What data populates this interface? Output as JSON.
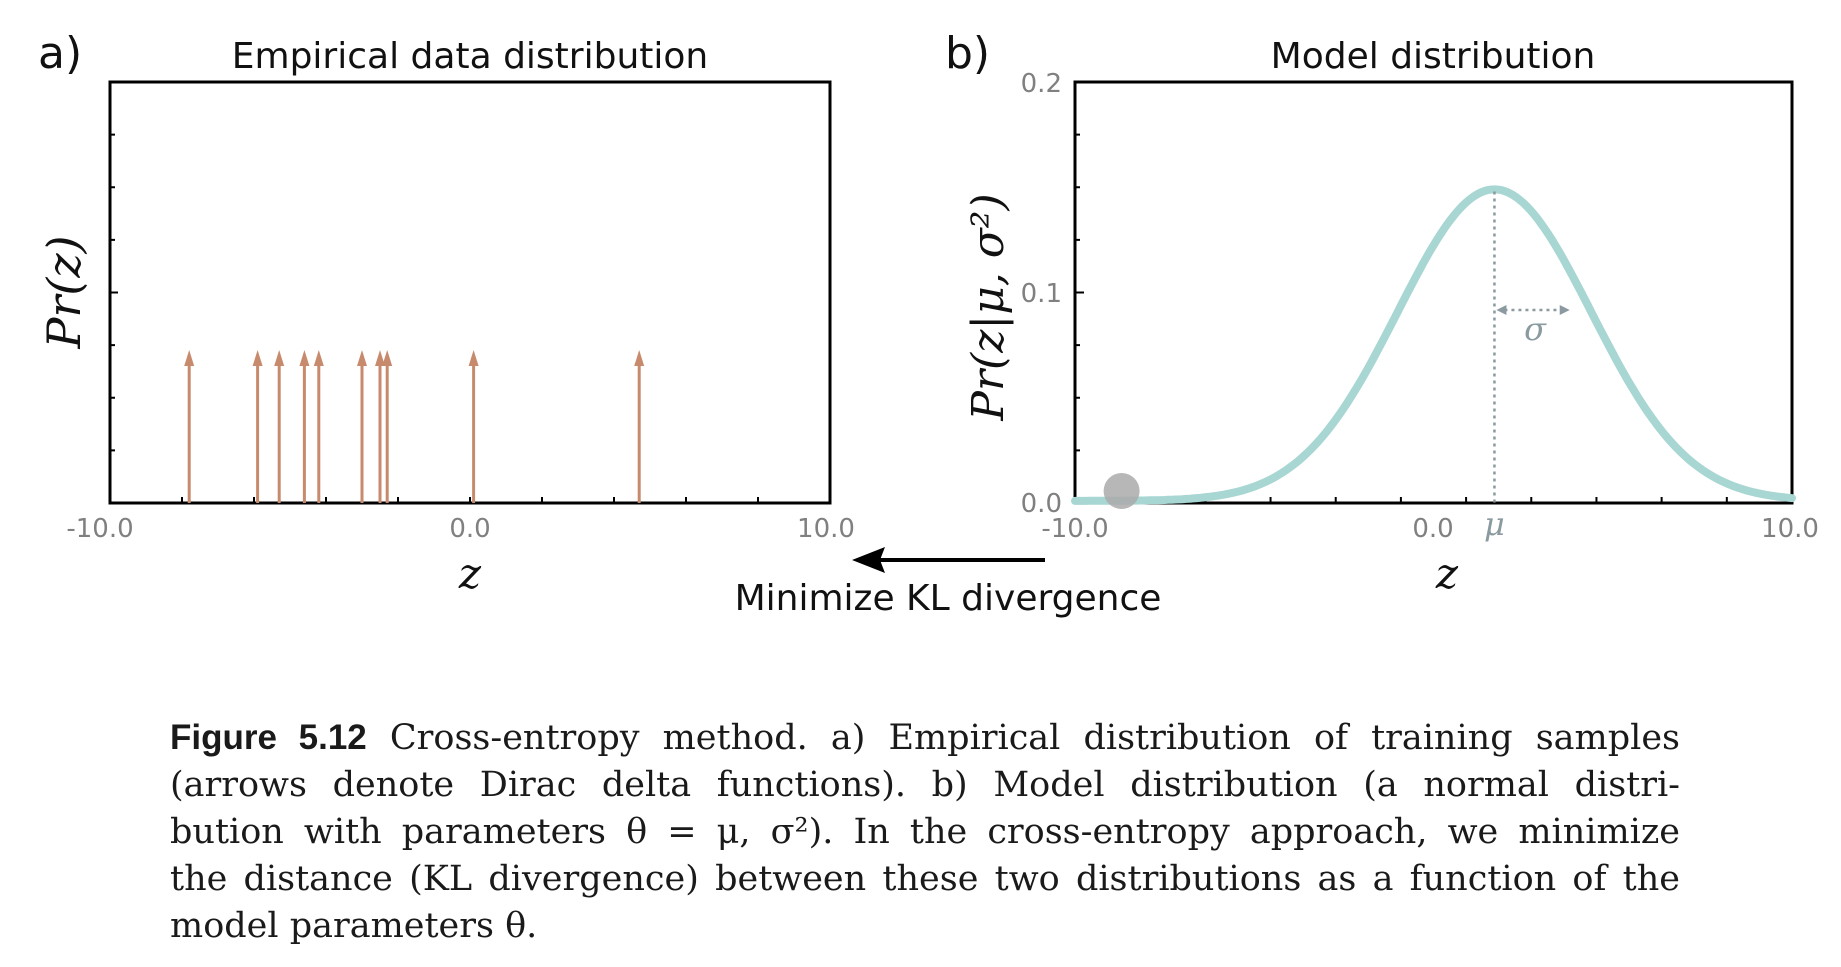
{
  "panel_a": {
    "letter": "a)",
    "title": "Empirical data distribution",
    "ylabel": "Pr(z)",
    "xlabel": "z",
    "xticks": [
      "-10.0",
      "0.0",
      "10.0"
    ]
  },
  "panel_b": {
    "letter": "b)",
    "title": "Model distribution",
    "ylabel": "Pr(z|μ, σ²)",
    "xlabel": "z",
    "xticks": [
      "-10.0",
      "0.0",
      "10.0"
    ],
    "yticks": [
      "0.0",
      "0.1",
      "0.2"
    ],
    "mu_label": "μ",
    "sigma_label": "σ"
  },
  "arrow_label": "Minimize KL divergence",
  "colors": {
    "delta_arrow": "#c88a6c",
    "curve": "#a8d6d2",
    "axis": "#000000",
    "tick_text": "#808080",
    "annotation": "#8a9aa0",
    "dot": "#aaaaaa"
  },
  "chart_data": [
    {
      "type": "scatter",
      "title": "Empirical data distribution",
      "xlabel": "z",
      "ylabel": "Pr(z)",
      "xlim": [
        -10,
        10
      ],
      "delta_positions": [
        -7.8,
        -5.9,
        -5.3,
        -4.6,
        -4.2,
        -3.0,
        -2.5,
        -2.3,
        0.1,
        4.7
      ]
    },
    {
      "type": "line",
      "title": "Model distribution",
      "xlabel": "z",
      "ylabel": "Pr(z|μ, σ²)",
      "xlim": [
        -10,
        10
      ],
      "ylim": [
        0,
        0.2
      ],
      "mu": 1.7,
      "sigma": 2.7,
      "peak": 0.148,
      "marker_x": -8.7
    }
  ],
  "caption": {
    "figure_label": "Figure 5.12",
    "lines": [
      " Cross-entropy method. a) Empirical distribution of training samples",
      "(arrows denote Dirac delta functions).  b) Model distribution (a normal distri-",
      "bution with parameters θ = μ, σ²).  In the cross-entropy approach, we minimize",
      "the distance (KL divergence) between these two distributions as a function of the",
      "model parameters θ."
    ]
  }
}
